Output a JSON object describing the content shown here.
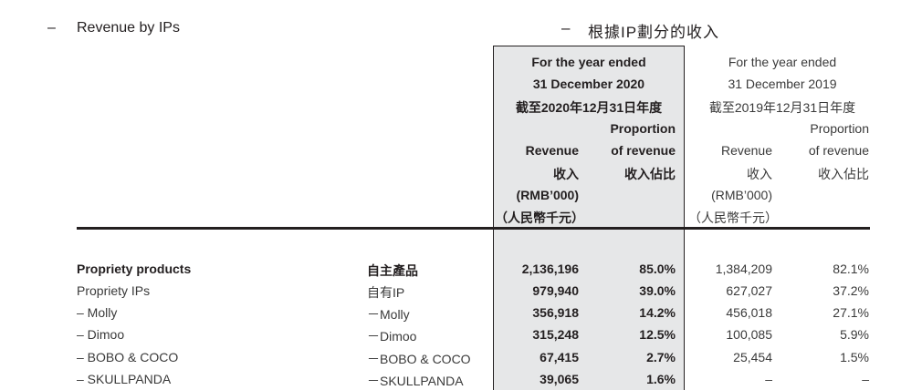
{
  "heading": {
    "en_dash": "–",
    "en_title": "Revenue by IPs",
    "zh_dash": "–",
    "zh_title": "根據IP劃分的收入"
  },
  "columns": {
    "y2020": {
      "period_line1": "For the year ended",
      "period_line2": "31 December 2020",
      "period_zh": "截至2020年12月31日年度",
      "revenue_en": "Revenue",
      "revenue_zh": "收入",
      "unit_en": "(RMB’000)",
      "unit_zh": "（人民幣千元）",
      "prop_line1": "Proportion",
      "prop_line2": "of revenue",
      "prop_zh": "收入佔比"
    },
    "y2019": {
      "period_line1": "For the year ended",
      "period_line2": "31 December 2019",
      "period_zh": "截至2019年12月31日年度",
      "revenue_en": "Revenue",
      "revenue_zh": "收入",
      "unit_en": "(RMB’000)",
      "unit_zh": "（人民幣千元）",
      "prop_line1": "Proportion",
      "prop_line2": "of revenue",
      "prop_zh": "收入佔比"
    }
  },
  "rows": [
    {
      "en": "Propriety products",
      "zh": "自主產品",
      "rev2020": "2,136,196",
      "prop2020": "85.0%",
      "rev2019": "1,384,209",
      "prop2019": "82.1%"
    },
    {
      "en": "Propriety IPs",
      "zh": "自有IP",
      "rev2020": "979,940",
      "prop2020": "39.0%",
      "rev2019": "627,027",
      "prop2019": "37.2%"
    },
    {
      "en": "– Molly",
      "zh": "－Molly",
      "rev2020": "356,918",
      "prop2020": "14.2%",
      "rev2019": "456,018",
      "prop2019": "27.1%"
    },
    {
      "en": "– Dimoo",
      "zh": "－Dimoo",
      "rev2020": "315,248",
      "prop2020": "12.5%",
      "rev2019": "100,085",
      "prop2019": "5.9%"
    },
    {
      "en": "– BOBO & COCO",
      "zh": "－BOBO & COCO",
      "rev2020": "67,415",
      "prop2020": "2.7%",
      "rev2019": "25,454",
      "prop2019": "1.5%"
    },
    {
      "en": "– SKULLPANDA",
      "zh": "－SKULLPANDA",
      "rev2020": "39,065",
      "prop2020": "1.6%",
      "rev2019": "–",
      "prop2019": "–"
    }
  ]
}
